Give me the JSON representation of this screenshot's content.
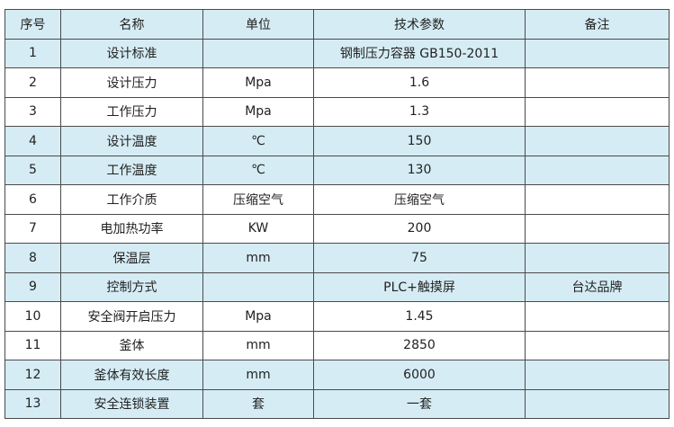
{
  "table": {
    "headers": [
      "序号",
      "名称",
      "单位",
      "技术参数",
      "备注"
    ],
    "rows": [
      {
        "cells": [
          "1",
          "设计标准",
          "",
          "钢制压力容器 GB150-2011",
          ""
        ],
        "shaded": true
      },
      {
        "cells": [
          "2",
          "设计压力",
          "Mpa",
          "1.6",
          ""
        ],
        "shaded": false
      },
      {
        "cells": [
          "3",
          "工作压力",
          "Mpa",
          "1.3",
          ""
        ],
        "shaded": false
      },
      {
        "cells": [
          "4",
          "设计温度",
          "℃",
          "150",
          ""
        ],
        "shaded": true
      },
      {
        "cells": [
          "5",
          "工作温度",
          "℃",
          "130",
          ""
        ],
        "shaded": true
      },
      {
        "cells": [
          "6",
          "工作介质",
          "压缩空气",
          "压缩空气",
          ""
        ],
        "shaded": false
      },
      {
        "cells": [
          "7",
          "电加热功率",
          "KW",
          "200",
          ""
        ],
        "shaded": false
      },
      {
        "cells": [
          "8",
          "保温层",
          "mm",
          "75",
          ""
        ],
        "shaded": true
      },
      {
        "cells": [
          "9",
          "控制方式",
          "",
          "PLC+触摸屏",
          "台达品牌"
        ],
        "shaded": true
      },
      {
        "cells": [
          "10",
          "安全阀开启压力",
          "Mpa",
          "1.45",
          ""
        ],
        "shaded": false
      },
      {
        "cells": [
          "11",
          "釜体",
          "mm",
          "2850",
          ""
        ],
        "shaded": false
      },
      {
        "cells": [
          "12",
          "釜体有效长度",
          "mm",
          "6000",
          ""
        ],
        "shaded": true
      },
      {
        "cells": [
          "13",
          "安全连锁装置",
          "套",
          "一套",
          ""
        ],
        "shaded": true
      }
    ]
  },
  "colors": {
    "shade": "#d5ecf4",
    "border": "#4a4a4a"
  }
}
